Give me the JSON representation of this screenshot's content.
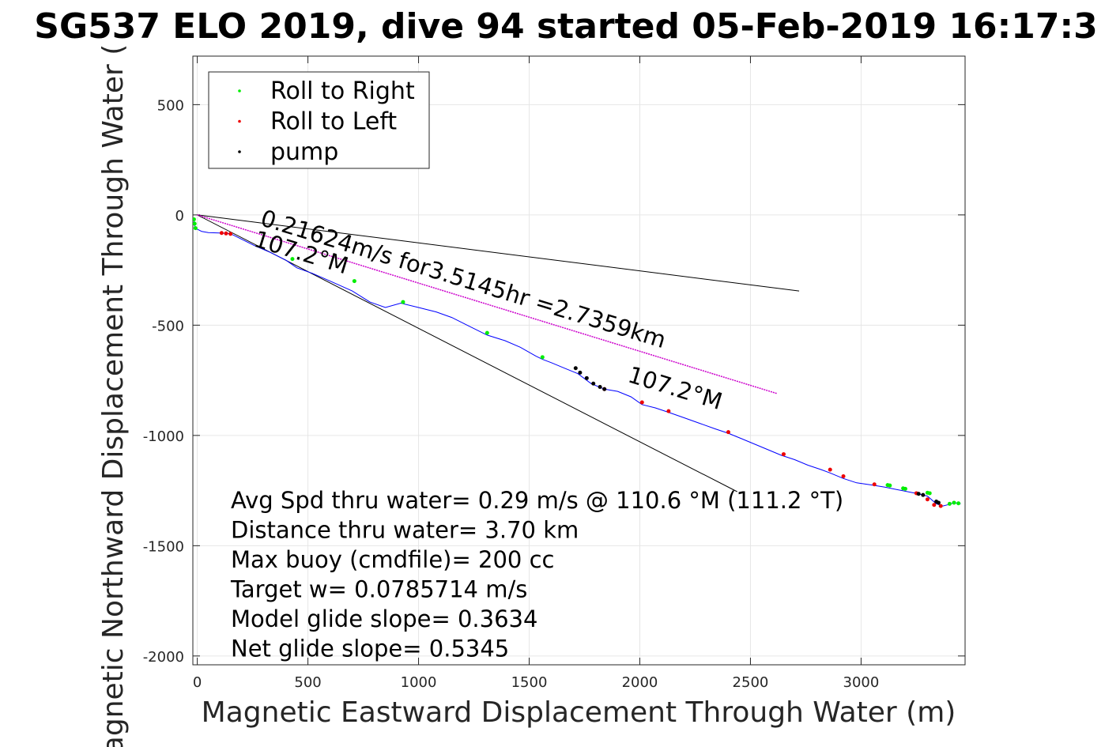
{
  "chart_data": {
    "type": "line",
    "title": "SG537 ELO 2019, dive 94 started 05-Feb-2019 16:17:3",
    "xlabel": "Magnetic Eastward Displacement Through Water (m)",
    "ylabel": "Magnetic Northward Displacement Through Water (",
    "xlim": [
      -20,
      3470
    ],
    "ylim": [
      -2040,
      720
    ],
    "xticks": [
      0,
      500,
      1000,
      1500,
      2000,
      2500,
      3000
    ],
    "yticks": [
      500,
      0,
      -500,
      -1000,
      -1500,
      -2000
    ],
    "grid": true,
    "legend": {
      "placement": "top-left",
      "entries": [
        {
          "label": "Roll to Right",
          "color": "#00ee00"
        },
        {
          "label": "Roll to Left",
          "color": "#ee0000"
        },
        {
          "label": "pump",
          "color": "#000000"
        }
      ]
    },
    "track": {
      "name": "",
      "color": "#0000ff",
      "x": [
        -15,
        -10,
        20,
        50,
        100,
        150,
        200,
        260,
        330,
        400,
        450,
        520,
        600,
        700,
        780,
        850,
        920,
        1000,
        1080,
        1150,
        1230,
        1310,
        1390,
        1460,
        1530,
        1560,
        1600,
        1660,
        1720,
        1780,
        1840,
        1900,
        1960,
        2010,
        2070,
        2130,
        2200,
        2270,
        2340,
        2400,
        2460,
        2520,
        2580,
        2640,
        2700,
        2760,
        2820,
        2860,
        2920,
        2980,
        3050,
        3110,
        3160,
        3210,
        3260,
        3300,
        3340,
        3370,
        3390,
        3420,
        3450
      ],
      "y": [
        -20,
        -60,
        -75,
        -80,
        -82,
        -85,
        -110,
        -140,
        -170,
        -205,
        -240,
        -265,
        -300,
        -345,
        -395,
        -420,
        -400,
        -420,
        -440,
        -465,
        -505,
        -545,
        -570,
        -600,
        -640,
        -655,
        -670,
        -695,
        -720,
        -765,
        -790,
        -800,
        -825,
        -860,
        -875,
        -895,
        -920,
        -945,
        -970,
        -990,
        -1015,
        -1040,
        -1065,
        -1090,
        -1110,
        -1135,
        -1155,
        -1170,
        -1195,
        -1215,
        -1225,
        -1235,
        -1245,
        -1255,
        -1265,
        -1275,
        -1310,
        -1320,
        -1315,
        -1305,
        -1310
      ]
    },
    "roll_right": {
      "x": [
        -15,
        -12,
        -8,
        430,
        710,
        930,
        1310,
        1560,
        3120,
        3130,
        3190,
        3200,
        3300,
        3310,
        3400,
        3420,
        3440
      ],
      "y": [
        -20,
        -40,
        -60,
        -200,
        -300,
        -395,
        -535,
        -645,
        -1225,
        -1227,
        -1240,
        -1242,
        -1260,
        -1262,
        -1310,
        -1305,
        -1308
      ]
    },
    "roll_left": {
      "x": [
        110,
        130,
        150,
        1840,
        2010,
        2130,
        2400,
        2650,
        2860,
        2920,
        3060,
        3250,
        3300,
        3330,
        3360
      ],
      "y": [
        -82,
        -84,
        -86,
        -790,
        -850,
        -890,
        -985,
        -1085,
        -1155,
        -1185,
        -1222,
        -1262,
        -1290,
        -1315,
        -1320
      ]
    },
    "pump": {
      "x": [
        1710,
        1730,
        1760,
        1790,
        1820,
        1840,
        3260,
        3280,
        3340,
        3350
      ],
      "y": [
        -695,
        -715,
        -740,
        -765,
        -780,
        -790,
        -1265,
        -1270,
        -1300,
        -1305
      ]
    },
    "vectors": [
      {
        "name": "",
        "color": "#000000",
        "x": [
          0,
          2720
        ],
        "y": [
          0,
          -345
        ]
      },
      {
        "name": "",
        "color": "#000000",
        "x": [
          0,
          2440
        ],
        "y": [
          0,
          -1255
        ]
      },
      {
        "name": "",
        "color": "#cc00cc",
        "x": [
          0,
          2620
        ],
        "y": [
          0,
          -810
        ]
      }
    ],
    "annotations": [
      {
        "text": "0.21624m/s for3.5145hr =2.7359km",
        "x": 280,
        "y": -45,
        "angle": 17
      },
      {
        "text": "107.2°M",
        "x": 250,
        "y": -140,
        "angle": 17
      },
      {
        "text": "107.2°M",
        "x": 1940,
        "y": -755,
        "angle": 17
      }
    ],
    "stats": [
      "Avg Spd thru water=  0.29 m/s @ 110.6 °M (111.2 °T)",
      "Distance thru water=  3.70 km",
      "Max buoy (cmdfile)= 200 cc",
      "Target w= 0.0785714 m/s",
      "Model glide slope= 0.3634",
      "Net glide slope= 0.5345"
    ]
  }
}
